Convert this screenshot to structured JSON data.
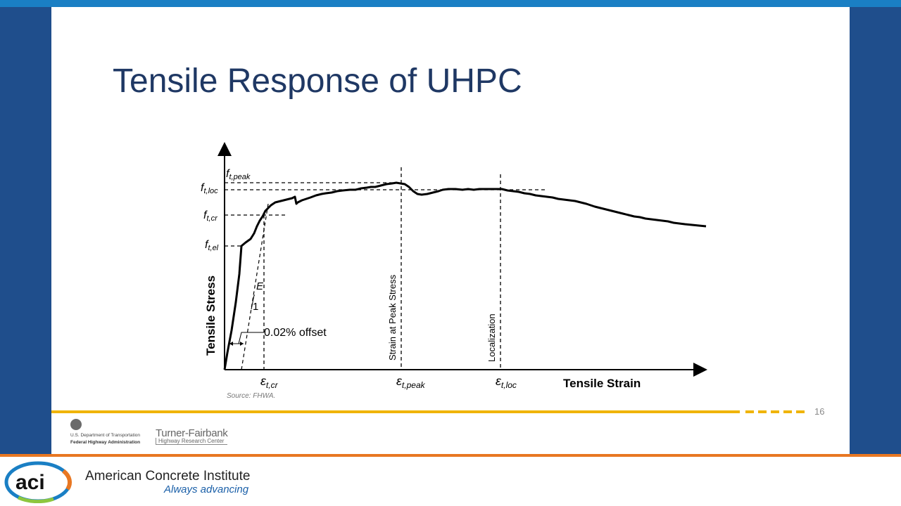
{
  "slide": {
    "title": "Tensile Response of UHPC",
    "page_number": "16",
    "source": "Source: FHWA."
  },
  "diagram": {
    "y_axis_label": "Tensile Stress",
    "x_axis_label": "Tensile Strain",
    "y_markers": [
      {
        "main": "f",
        "sub": "t,peak"
      },
      {
        "main": "f",
        "sub": "t,loc"
      },
      {
        "main": "f",
        "sub": "t,cr"
      },
      {
        "main": "f",
        "sub": "t,el"
      }
    ],
    "x_markers": [
      {
        "main": "ε",
        "sub": "t,cr"
      },
      {
        "main": "ε",
        "sub": "t,peak"
      },
      {
        "main": "ε",
        "sub": "t,loc"
      }
    ],
    "vertical_labels": {
      "peak": "Strain at Peak Stress",
      "localization": "Localization"
    },
    "slope_label_E": "E",
    "slope_label_1": "1",
    "offset_label": "0.02% offset"
  },
  "footer": {
    "fhwa_line1": "U.S. Department of Transportation",
    "fhwa_line2": "Federal Highway Administration",
    "tf_line1": "Turner-Fairbank",
    "tf_line2": "Highway Research Center",
    "aci_logo_text": "aci",
    "aci_name": "American Concrete Institute",
    "aci_tagline": "Always advancing"
  },
  "colors": {
    "top_bar": "#1a7fc4",
    "side_panels": "#1f4e8c",
    "title": "#1f3864",
    "gold_rule": "#f0b400",
    "orange_rule": "#e87722",
    "aci_blue": "#1a5fa8"
  },
  "icons": {
    "fhwa": "dot-seal-icon",
    "aci": "aci-ring-logo-icon"
  }
}
